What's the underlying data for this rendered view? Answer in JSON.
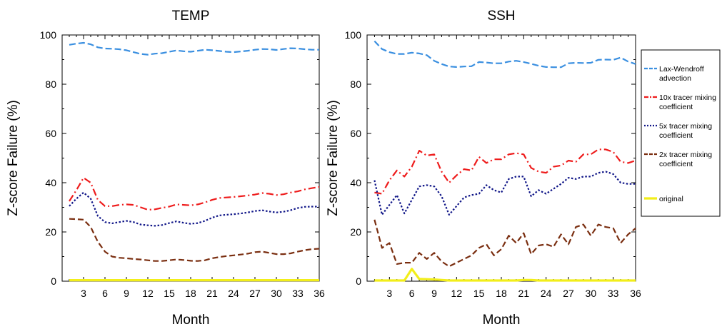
{
  "colors": {
    "lax": "#3a8fe0",
    "tracer10x": "#ee1c1c",
    "tracer5x": "#101688",
    "tracer2x": "#7a2e10",
    "original": "#f2ee1a"
  },
  "legend": {
    "placement": "right",
    "entries": [
      {
        "key": "lax",
        "label_lines": [
          "Lax-Wendroff",
          "advection"
        ],
        "dash": "long-dash"
      },
      {
        "key": "tracer10x",
        "label_lines": [
          "10x tracer mixing",
          "coefficient"
        ],
        "dash": "dash-dot"
      },
      {
        "key": "tracer5x",
        "label_lines": [
          "5x tracer mixing",
          "coefficient"
        ],
        "dash": "dot"
      },
      {
        "key": "tracer2x",
        "label_lines": [
          "2x tracer mixing",
          "coefficient"
        ],
        "dash": "dash"
      },
      {
        "key": "original",
        "label_lines": [
          "original"
        ],
        "dash": "solid"
      }
    ]
  },
  "chart_data": [
    {
      "type": "line",
      "title": "TEMP",
      "xlabel": "Month",
      "ylabel": "Z-score Failure (%)",
      "xlim": [
        0,
        36
      ],
      "ylim": [
        0,
        100
      ],
      "xticks": [
        3,
        6,
        9,
        12,
        15,
        18,
        21,
        24,
        27,
        30,
        33,
        36
      ],
      "yticks": [
        0,
        20,
        40,
        60,
        80,
        100
      ],
      "grid": false,
      "x": [
        1,
        2,
        3,
        4,
        5,
        6,
        7,
        8,
        9,
        10,
        11,
        12,
        13,
        14,
        15,
        16,
        17,
        18,
        19,
        20,
        21,
        22,
        23,
        24,
        25,
        26,
        27,
        28,
        29,
        30,
        31,
        32,
        33,
        34,
        35,
        36
      ],
      "series": [
        {
          "name": "Lax-Wendroff advection",
          "key": "lax",
          "values": [
            96.0,
            96.5,
            96.8,
            96.2,
            95.0,
            94.5,
            94.4,
            94.2,
            93.8,
            93.0,
            92.3,
            92.0,
            92.4,
            92.6,
            93.2,
            93.7,
            93.4,
            93.2,
            93.6,
            94.0,
            93.8,
            93.5,
            93.2,
            93.0,
            93.3,
            93.6,
            94.0,
            94.3,
            94.2,
            93.9,
            94.3,
            94.6,
            94.5,
            94.2,
            94.0,
            94.0
          ]
        },
        {
          "name": "10x tracer mixing coefficient",
          "key": "tracer10x",
          "values": [
            32.5,
            37.0,
            42.0,
            40.0,
            33.0,
            30.5,
            30.5,
            31.0,
            31.2,
            31.0,
            30.0,
            29.0,
            29.2,
            29.8,
            30.3,
            31.2,
            31.0,
            30.8,
            31.2,
            32.0,
            33.0,
            33.8,
            34.0,
            34.2,
            34.5,
            34.8,
            35.2,
            35.8,
            35.5,
            35.0,
            35.3,
            36.0,
            36.5,
            37.3,
            37.8,
            38.3
          ]
        },
        {
          "name": "5x tracer mixing coefficient",
          "key": "tracer5x",
          "values": [
            30.5,
            33.5,
            36.0,
            33.5,
            26.5,
            24.0,
            23.5,
            24.0,
            24.5,
            24.0,
            23.0,
            22.7,
            22.5,
            22.8,
            23.6,
            24.3,
            23.7,
            23.3,
            23.6,
            24.5,
            25.8,
            26.7,
            27.0,
            27.2,
            27.5,
            27.9,
            28.5,
            28.8,
            28.3,
            27.9,
            28.2,
            28.8,
            29.7,
            30.2,
            30.3,
            30.3
          ]
        },
        {
          "name": "2x tracer mixing coefficient",
          "key": "tracer2x",
          "values": [
            25.3,
            25.2,
            25.0,
            22.0,
            16.0,
            12.0,
            10.0,
            9.5,
            9.3,
            9.0,
            8.8,
            8.5,
            8.2,
            8.2,
            8.5,
            8.8,
            8.6,
            8.3,
            8.2,
            8.5,
            9.3,
            9.8,
            10.2,
            10.5,
            10.8,
            11.2,
            11.8,
            12.0,
            11.5,
            11.0,
            11.0,
            11.3,
            12.0,
            12.6,
            13.0,
            13.2
          ]
        },
        {
          "name": "original",
          "key": "original",
          "values": [
            0.4,
            0.4,
            0.4,
            0.4,
            0.4,
            0.4,
            0.4,
            0.4,
            0.4,
            0.4,
            0.4,
            0.4,
            0.4,
            0.4,
            0.4,
            0.4,
            0.4,
            0.4,
            0.4,
            0.4,
            0.4,
            0.4,
            0.4,
            0.4,
            0.4,
            0.4,
            0.4,
            0.4,
            0.4,
            0.4,
            0.4,
            0.4,
            0.4,
            0.4,
            0.4,
            0.4
          ]
        }
      ]
    },
    {
      "type": "line",
      "title": "SSH",
      "xlabel": "Month",
      "ylabel": "Z-score Failure (%)",
      "xlim": [
        0,
        36
      ],
      "ylim": [
        0,
        100
      ],
      "xticks": [
        3,
        6,
        9,
        12,
        15,
        18,
        21,
        24,
        27,
        30,
        33,
        36
      ],
      "yticks": [
        0,
        20,
        40,
        60,
        80,
        100
      ],
      "grid": false,
      "x": [
        1,
        2,
        3,
        4,
        5,
        6,
        7,
        8,
        9,
        10,
        11,
        12,
        13,
        14,
        15,
        16,
        17,
        18,
        19,
        20,
        21,
        22,
        23,
        24,
        25,
        26,
        27,
        28,
        29,
        30,
        31,
        32,
        33,
        34,
        35,
        36
      ],
      "series": [
        {
          "name": "Lax-Wendroff advection",
          "key": "lax",
          "values": [
            97.5,
            94.3,
            93.0,
            92.3,
            92.3,
            92.8,
            92.5,
            91.8,
            89.5,
            88.2,
            87.2,
            87.0,
            87.2,
            87.3,
            89.0,
            88.8,
            88.5,
            88.5,
            89.2,
            89.5,
            89.0,
            88.3,
            87.5,
            87.0,
            86.9,
            86.9,
            88.5,
            88.7,
            88.6,
            88.7,
            89.9,
            90.0,
            89.9,
            90.8,
            89.2,
            88.2
          ]
        },
        {
          "name": "10x tracer mixing coefficient",
          "key": "tracer10x",
          "values": [
            36.0,
            35.5,
            41.0,
            45.0,
            42.5,
            46.5,
            53.0,
            51.0,
            51.5,
            44.5,
            40.0,
            43.0,
            45.5,
            45.0,
            50.5,
            48.0,
            49.5,
            49.5,
            51.5,
            52.0,
            51.5,
            46.0,
            44.5,
            44.0,
            46.5,
            47.0,
            49.0,
            48.5,
            51.5,
            51.5,
            53.5,
            53.5,
            52.5,
            48.5,
            48.0,
            49.0
          ]
        },
        {
          "name": "5x tracer mixing coefficient",
          "key": "tracer5x",
          "values": [
            41.0,
            27.0,
            31.0,
            35.0,
            27.5,
            33.0,
            38.5,
            39.0,
            38.5,
            34.5,
            27.0,
            30.5,
            34.0,
            35.0,
            35.5,
            39.0,
            37.0,
            36.0,
            41.5,
            42.5,
            42.5,
            34.5,
            37.0,
            35.5,
            37.5,
            39.5,
            42.0,
            41.5,
            42.5,
            42.5,
            44.0,
            44.5,
            43.5,
            40.0,
            39.5,
            39.5
          ]
        },
        {
          "name": "2x tracer mixing coefficient",
          "key": "tracer2x",
          "values": [
            25.0,
            13.5,
            15.5,
            7.0,
            7.5,
            7.5,
            11.5,
            9.0,
            11.5,
            8.0,
            6.0,
            7.5,
            9.0,
            10.5,
            13.5,
            15.0,
            10.5,
            13.0,
            18.5,
            15.5,
            19.5,
            11.0,
            14.5,
            15.0,
            14.0,
            19.0,
            15.0,
            22.0,
            23.0,
            18.5,
            23.0,
            22.0,
            21.5,
            15.5,
            19.0,
            21.5
          ]
        },
        {
          "name": "original",
          "key": "original",
          "values": [
            0.3,
            0.3,
            0.3,
            0.3,
            0.3,
            5.0,
            0.9,
            0.8,
            0.7,
            0.5,
            0.3,
            0.3,
            0.3,
            0.3,
            0.3,
            0.3,
            0.3,
            0.3,
            0.3,
            0.3,
            0.5,
            0.5,
            0.3,
            0.3,
            0.3,
            0.3,
            0.3,
            0.3,
            0.3,
            0.3,
            0.3,
            0.3,
            0.3,
            0.3,
            0.3,
            0.3
          ]
        }
      ]
    }
  ]
}
